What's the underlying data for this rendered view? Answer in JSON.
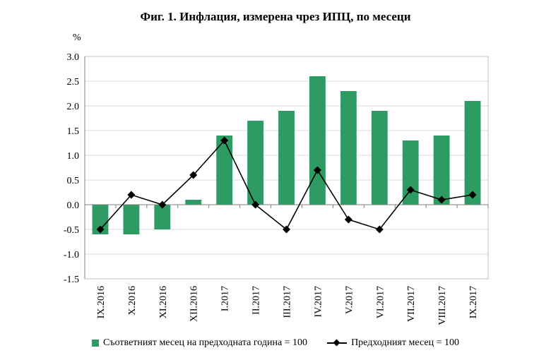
{
  "chart_data": {
    "type": "bar",
    "title": "Фиг. 1. Инфлация, измерена чрез ИПЦ, по месеци",
    "ylabel": "%",
    "ylim": [
      -1.5,
      3.0
    ],
    "yticks": [
      "3.0",
      "2.5",
      "2.0",
      "1.5",
      "1.0",
      "0.5",
      "0.0",
      "-0.5",
      "-1.0",
      "-1.5"
    ],
    "categories": [
      "IX.2016",
      "X.2016",
      "XI.2016",
      "XII.2016",
      "I.2017",
      "II.2017",
      "III.2017",
      "IV.2017",
      "V.2017",
      "VI.2017",
      "VII.2017",
      "VIII.2017",
      "IX.2017"
    ],
    "series": [
      {
        "name": "Съответният месец на предходната година = 100",
        "type": "bar",
        "color": "#2e9b62",
        "values": [
          -0.6,
          -0.6,
          -0.5,
          0.1,
          1.4,
          1.7,
          1.9,
          2.6,
          2.3,
          1.9,
          1.3,
          1.4,
          2.1
        ]
      },
      {
        "name": "Предходният месец = 100",
        "type": "line",
        "color": "#000000",
        "marker": "diamond",
        "values": [
          -0.5,
          0.2,
          0.0,
          0.6,
          1.3,
          0.0,
          -0.5,
          0.7,
          -0.3,
          -0.5,
          0.3,
          0.1,
          0.2
        ]
      }
    ],
    "grid": true,
    "legend": "bottom"
  }
}
